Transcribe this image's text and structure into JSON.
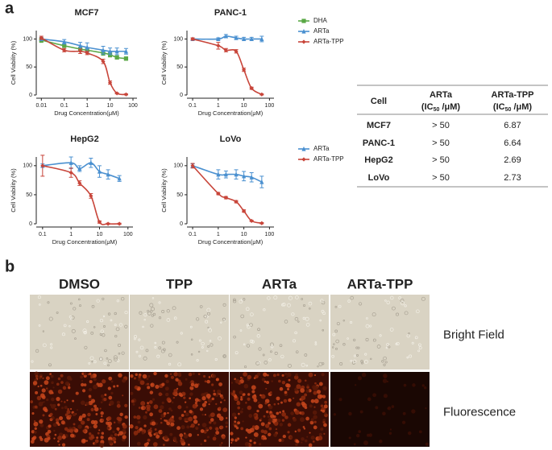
{
  "panel_labels": [
    "a",
    "b"
  ],
  "chart_data": [
    {
      "type": "line",
      "title": "MCF7",
      "xlabel": "Drug Concentration(μM)",
      "ylabel": "Cell Viability (%)",
      "xscale": "log",
      "xlim": [
        0.006,
        150
      ],
      "xticks": [
        0.01,
        0.1,
        1,
        10,
        100
      ],
      "ylim": [
        0,
        115
      ],
      "yticks": [
        0,
        50,
        100
      ],
      "legend": true,
      "x": [
        0.01,
        0.1,
        0.5,
        1,
        5,
        10,
        20,
        50
      ],
      "series": [
        {
          "name": "DHA",
          "color": "#5aa846",
          "marker": "square",
          "values": [
            98,
            88,
            82,
            80,
            75,
            72,
            67,
            65
          ],
          "errors": [
            4,
            3,
            3,
            3,
            4,
            4,
            3,
            3
          ]
        },
        {
          "name": "ARTa",
          "color": "#4a90d0",
          "marker": "triangle",
          "values": [
            100,
            95,
            88,
            85,
            80,
            78,
            78,
            78
          ],
          "errors": [
            3,
            4,
            6,
            8,
            7,
            6,
            6,
            5
          ]
        },
        {
          "name": "ARTa-TPP",
          "color": "#c8453a",
          "marker": "diamond",
          "values": [
            102,
            80,
            78,
            75,
            60,
            22,
            3,
            1
          ],
          "errors": [
            3,
            3,
            4,
            3,
            4,
            3,
            1,
            1
          ]
        }
      ]
    },
    {
      "type": "line",
      "title": "PANC-1",
      "xlabel": "Drug Concentration(μM)",
      "ylabel": "Cell Viability (%)",
      "xscale": "log",
      "xlim": [
        0.06,
        150
      ],
      "xticks": [
        0.1,
        1,
        10,
        100
      ],
      "ylim": [
        0,
        115
      ],
      "yticks": [
        0,
        50,
        100
      ],
      "legend": false,
      "x": [
        0.1,
        1,
        2,
        5,
        10,
        20,
        50
      ],
      "series": [
        {
          "name": "ARTa",
          "color": "#4a90d0",
          "marker": "triangle",
          "values": [
            100,
            100,
            105,
            102,
            100,
            100,
            100
          ],
          "errors": [
            2,
            2,
            3,
            3,
            3,
            3,
            5
          ]
        },
        {
          "name": "ARTa-TPP",
          "color": "#c8453a",
          "marker": "diamond",
          "values": [
            100,
            88,
            80,
            78,
            45,
            12,
            1
          ],
          "errors": [
            2,
            6,
            3,
            3,
            3,
            2,
            1
          ]
        }
      ]
    },
    {
      "type": "line",
      "title": "HepG2",
      "xlabel": "Drug Concentration(μM)",
      "ylabel": "Cell Viability (%)",
      "xscale": "log",
      "xlim": [
        0.06,
        150
      ],
      "xticks": [
        0.1,
        1,
        10,
        100
      ],
      "ylim": [
        0,
        115
      ],
      "yticks": [
        0,
        50,
        100
      ],
      "legend": true,
      "x": [
        0.1,
        1,
        2,
        5,
        10,
        20,
        50
      ],
      "series": [
        {
          "name": "ARTa",
          "color": "#4a90d0",
          "marker": "triangle",
          "values": [
            100,
            105,
            95,
            105,
            90,
            85,
            78
          ],
          "errors": [
            3,
            10,
            5,
            8,
            10,
            8,
            5
          ]
        },
        {
          "name": "ARTa-TPP",
          "color": "#c8453a",
          "marker": "diamond",
          "values": [
            100,
            88,
            70,
            48,
            3,
            0,
            0
          ],
          "errors": [
            18,
            8,
            4,
            4,
            2,
            1,
            1
          ]
        }
      ]
    },
    {
      "type": "line",
      "title": "LoVo",
      "xlabel": "Drug Concentration(μM)",
      "ylabel": "Cell Viability (%)",
      "xscale": "log",
      "xlim": [
        0.06,
        150
      ],
      "xticks": [
        0.1,
        1,
        10,
        100
      ],
      "ylim": [
        0,
        115
      ],
      "yticks": [
        0,
        50,
        100
      ],
      "legend": false,
      "x": [
        0.1,
        1,
        2,
        5,
        10,
        20,
        50
      ],
      "series": [
        {
          "name": "ARTa",
          "color": "#4a90d0",
          "marker": "triangle",
          "values": [
            100,
            85,
            85,
            85,
            82,
            80,
            72
          ],
          "errors": [
            3,
            8,
            6,
            8,
            8,
            8,
            10
          ]
        },
        {
          "name": "ARTa-TPP",
          "color": "#c8453a",
          "marker": "diamond",
          "values": [
            100,
            52,
            45,
            38,
            22,
            5,
            1
          ],
          "errors": [
            4,
            2,
            2,
            2,
            2,
            1,
            1
          ]
        }
      ]
    }
  ],
  "table": {
    "columns": [
      {
        "name": "Cell"
      },
      {
        "name": "ARTa",
        "unit_prefix": "(IC",
        "unit_sub": "50",
        "unit_suffix": " /μM)"
      },
      {
        "name": "ARTa-TPP",
        "unit_prefix": "(IC",
        "unit_sub": "50",
        "unit_suffix": " /μM)"
      }
    ],
    "rows": [
      [
        "MCF7",
        "> 50",
        6.87
      ],
      [
        "PANC-1",
        "> 50",
        6.64
      ],
      [
        "HepG2",
        "> 50",
        2.69
      ],
      [
        "LoVo",
        "> 50",
        2.73
      ]
    ]
  },
  "panel_b": {
    "columns": [
      "DMSO",
      "TPP",
      "ARTa",
      "ARTa-TPP"
    ],
    "rows": [
      "Bright Field",
      "Fluorescence"
    ]
  }
}
